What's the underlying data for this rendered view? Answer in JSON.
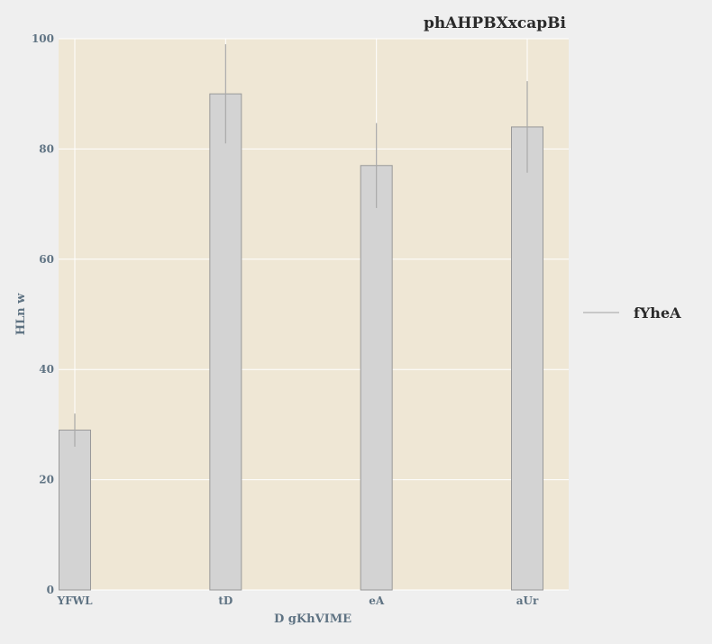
{
  "chart_data": {
    "type": "bar",
    "title": "phAHPBXxcapBi",
    "xlabel": "D gKhVIME",
    "ylabel": "HLn w",
    "categories": [
      "YFWL",
      "tD",
      "eA",
      "aUr"
    ],
    "series": [
      {
        "name": "fYheA",
        "values": [
          29,
          90,
          77,
          84
        ],
        "error": [
          3,
          9,
          7.7,
          8.3
        ]
      }
    ],
    "ylim": [
      0,
      100
    ],
    "yticks": [
      0,
      20,
      40,
      60,
      80,
      100
    ],
    "grid": true,
    "legend": "right",
    "colors": {
      "page_background": "#efefef",
      "plot_background": "#efe7d5",
      "bar_fill": "#d3d3d3",
      "bar_stroke": "#999999",
      "error_bar": "#a9a9a9",
      "grid": "#ffffff"
    }
  }
}
